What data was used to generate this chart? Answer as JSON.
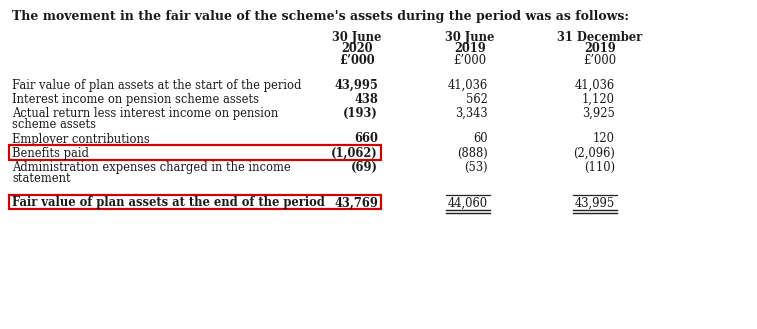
{
  "title": "The movement in the fair value of the scheme's assets during the period was as follows:",
  "col_headers": [
    [
      "30 June",
      "2020",
      "£’000"
    ],
    [
      "30 June",
      "2019",
      "£’000"
    ],
    [
      "31 December",
      "2019",
      "£’000"
    ]
  ],
  "rows": [
    {
      "label": "Fair value of plan assets at the start of the period",
      "values": [
        "43,995",
        "41,036",
        "41,036"
      ],
      "bold_label": false,
      "bold_col0": true,
      "wrap": false,
      "highlight": false,
      "total_row": false,
      "gap_before": false
    },
    {
      "label": "Interest income on pension scheme assets",
      "values": [
        "438",
        "562",
        "1,120"
      ],
      "bold_label": false,
      "bold_col0": true,
      "wrap": false,
      "highlight": false,
      "total_row": false,
      "gap_before": false
    },
    {
      "label_lines": [
        "Actual return less interest income on pension",
        "scheme assets"
      ],
      "values": [
        "(193)",
        "3,343",
        "3,925"
      ],
      "bold_label": false,
      "bold_col0": true,
      "wrap": true,
      "highlight": false,
      "total_row": false,
      "gap_before": false
    },
    {
      "label": "Employer contributions",
      "values": [
        "660",
        "60",
        "120"
      ],
      "bold_label": false,
      "bold_col0": true,
      "wrap": false,
      "highlight": false,
      "total_row": false,
      "gap_before": false
    },
    {
      "label": "Benefits paid",
      "values": [
        "(1,062)",
        "(888)",
        "(2,096)"
      ],
      "bold_label": false,
      "bold_col0": true,
      "wrap": false,
      "highlight": true,
      "total_row": false,
      "gap_before": false
    },
    {
      "label_lines": [
        "Administration expenses charged in the income",
        "statement"
      ],
      "values": [
        "(69)",
        "(53)",
        "(110)"
      ],
      "bold_label": false,
      "bold_col0": true,
      "wrap": true,
      "highlight": false,
      "total_row": false,
      "gap_before": false
    },
    {
      "label": "Fair value of plan assets at the end of the period",
      "values": [
        "43,769",
        "44,060",
        "43,995"
      ],
      "bold_label": true,
      "bold_col0": true,
      "wrap": false,
      "highlight": true,
      "total_row": true,
      "gap_before": true
    }
  ],
  "bg_color": "#ffffff",
  "text_color": "#1a1a1a",
  "highlight_color": "#cc0000",
  "line_color": "#222222"
}
